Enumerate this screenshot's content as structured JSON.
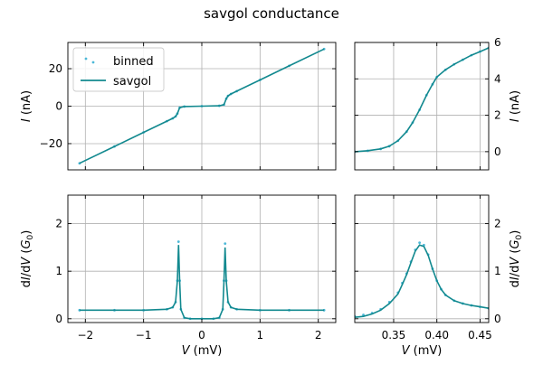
{
  "title": "savgol conductance",
  "colors": {
    "binned": "#4cb8d8",
    "savgol": "#12898f",
    "grid": "#b0b0b0"
  },
  "chart_data": [
    {
      "id": "top-left",
      "type": "scatter",
      "title": "",
      "xlabel": "",
      "ylabel": "I (nA)",
      "xlim": [
        -2.3,
        2.3
      ],
      "ylim": [
        -34,
        34
      ],
      "xticks": [
        -2,
        -1,
        0,
        1,
        2
      ],
      "xtick_labels": [
        "",
        "",
        "",
        "",
        ""
      ],
      "yticks": [
        -20,
        0,
        20
      ],
      "ytick_labels": [
        "−20",
        "0",
        "20"
      ],
      "ytick_side": "left",
      "grid": true,
      "legend": {
        "position": "top-left",
        "entries": [
          "binned",
          "savgol"
        ]
      },
      "series": [
        {
          "name": "binned",
          "style": "points",
          "x": [
            -2.1,
            -1.5,
            -1.0,
            -0.6,
            -0.5,
            -0.45,
            -0.42,
            -0.38,
            -0.3,
            0.0,
            0.3,
            0.38,
            0.42,
            0.45,
            0.5,
            0.6,
            1.0,
            1.5,
            2.1
          ],
          "y": [
            -30.5,
            -21.5,
            -14.0,
            -8.0,
            -6.5,
            -5.5,
            -4.0,
            -0.8,
            -0.2,
            0.0,
            0.2,
            0.8,
            4.0,
            5.5,
            6.5,
            8.0,
            14.0,
            21.5,
            30.5
          ]
        },
        {
          "name": "savgol",
          "style": "line",
          "x": [
            -2.1,
            -1.5,
            -1.0,
            -0.6,
            -0.5,
            -0.45,
            -0.42,
            -0.38,
            -0.3,
            0.0,
            0.3,
            0.38,
            0.42,
            0.45,
            0.5,
            0.6,
            1.0,
            1.5,
            2.1
          ],
          "y": [
            -30.5,
            -21.5,
            -14.0,
            -8.0,
            -6.5,
            -5.5,
            -4.0,
            -0.8,
            -0.2,
            0.0,
            0.2,
            0.8,
            4.0,
            5.5,
            6.5,
            8.0,
            14.0,
            21.5,
            30.5
          ]
        }
      ]
    },
    {
      "id": "top-right",
      "type": "line",
      "title": "",
      "xlabel": "",
      "ylabel": "I (nA)",
      "xlim": [
        0.305,
        0.46
      ],
      "ylim": [
        -1,
        6
      ],
      "xticks": [
        0.35,
        0.4,
        0.45
      ],
      "xtick_labels": [
        "",
        "",
        ""
      ],
      "yticks": [
        0,
        2,
        4,
        6
      ],
      "ytick_labels": [
        "0",
        "2",
        "4",
        "6"
      ],
      "ytick_side": "right",
      "grid": true,
      "series": [
        {
          "name": "binned",
          "style": "points",
          "x": [
            0.305,
            0.32,
            0.335,
            0.345,
            0.355,
            0.365,
            0.372,
            0.38,
            0.388,
            0.395,
            0.4,
            0.41,
            0.42,
            0.43,
            0.44,
            0.45,
            0.46
          ],
          "y": [
            0.0,
            0.05,
            0.15,
            0.3,
            0.6,
            1.1,
            1.6,
            2.3,
            3.1,
            3.7,
            4.1,
            4.5,
            4.8,
            5.05,
            5.3,
            5.5,
            5.7
          ]
        },
        {
          "name": "savgol",
          "style": "line",
          "x": [
            0.305,
            0.32,
            0.335,
            0.345,
            0.355,
            0.365,
            0.372,
            0.38,
            0.388,
            0.395,
            0.4,
            0.41,
            0.42,
            0.43,
            0.44,
            0.45,
            0.46
          ],
          "y": [
            0.0,
            0.05,
            0.15,
            0.3,
            0.6,
            1.1,
            1.6,
            2.3,
            3.1,
            3.7,
            4.1,
            4.5,
            4.8,
            5.05,
            5.3,
            5.5,
            5.7
          ]
        }
      ]
    },
    {
      "id": "bottom-left",
      "type": "scatter",
      "title": "",
      "xlabel": "V (mV)",
      "ylabel": "dI/dV (G0)",
      "xlim": [
        -2.3,
        2.3
      ],
      "ylim": [
        -0.08,
        2.6
      ],
      "xticks": [
        -2,
        -1,
        0,
        1,
        2
      ],
      "xtick_labels": [
        "−2",
        "−1",
        "0",
        "1",
        "2"
      ],
      "yticks": [
        0,
        1,
        2
      ],
      "ytick_labels": [
        "0",
        "1",
        "2"
      ],
      "ytick_side": "left",
      "grid": true,
      "series": [
        {
          "name": "binned",
          "style": "points",
          "x": [
            -2.1,
            -1.5,
            -1.0,
            -0.6,
            -0.5,
            -0.45,
            -0.42,
            -0.4,
            -0.38,
            -0.36,
            -0.3,
            -0.2,
            0.0,
            0.2,
            0.3,
            0.36,
            0.38,
            0.4,
            0.42,
            0.45,
            0.5,
            0.6,
            1.0,
            1.5,
            2.1
          ],
          "y": [
            0.18,
            0.18,
            0.18,
            0.2,
            0.24,
            0.35,
            0.8,
            1.62,
            0.8,
            0.2,
            0.02,
            0.0,
            0.0,
            0.0,
            0.02,
            0.2,
            0.8,
            1.58,
            0.8,
            0.35,
            0.24,
            0.2,
            0.18,
            0.18,
            0.18
          ]
        },
        {
          "name": "savgol",
          "style": "line",
          "x": [
            -2.1,
            -1.5,
            -1.0,
            -0.6,
            -0.5,
            -0.45,
            -0.42,
            -0.4,
            -0.38,
            -0.36,
            -0.3,
            -0.2,
            0.0,
            0.2,
            0.3,
            0.36,
            0.38,
            0.4,
            0.42,
            0.45,
            0.5,
            0.6,
            1.0,
            1.5,
            2.1
          ],
          "y": [
            0.18,
            0.18,
            0.18,
            0.2,
            0.24,
            0.35,
            0.8,
            1.55,
            0.8,
            0.2,
            0.02,
            0.0,
            0.0,
            0.0,
            0.02,
            0.2,
            0.8,
            1.5,
            0.8,
            0.35,
            0.24,
            0.2,
            0.18,
            0.18,
            0.18
          ]
        }
      ]
    },
    {
      "id": "bottom-right",
      "type": "line",
      "title": "",
      "xlabel": "V (mV)",
      "ylabel": "dI/dV (G0)",
      "xlim": [
        0.305,
        0.46
      ],
      "ylim": [
        -0.08,
        2.6
      ],
      "xticks": [
        0.35,
        0.4,
        0.45
      ],
      "xtick_labels": [
        "0.35",
        "0.40",
        "0.45"
      ],
      "yticks": [
        0,
        1,
        2
      ],
      "ytick_labels": [
        "0",
        "1",
        "2"
      ],
      "ytick_side": "right",
      "grid": true,
      "series": [
        {
          "name": "binned",
          "style": "points",
          "x": [
            0.305,
            0.315,
            0.325,
            0.335,
            0.345,
            0.355,
            0.36,
            0.365,
            0.37,
            0.375,
            0.38,
            0.385,
            0.39,
            0.395,
            0.4,
            0.405,
            0.41,
            0.42,
            0.43,
            0.44,
            0.45,
            0.46
          ],
          "y": [
            0.05,
            0.08,
            0.12,
            0.2,
            0.35,
            0.55,
            0.75,
            0.95,
            1.2,
            1.45,
            1.6,
            1.55,
            1.35,
            1.05,
            0.8,
            0.62,
            0.5,
            0.38,
            0.32,
            0.28,
            0.25,
            0.22
          ]
        },
        {
          "name": "savgol",
          "style": "line",
          "x": [
            0.305,
            0.315,
            0.325,
            0.335,
            0.345,
            0.355,
            0.36,
            0.365,
            0.37,
            0.375,
            0.38,
            0.385,
            0.39,
            0.395,
            0.4,
            0.405,
            0.41,
            0.42,
            0.43,
            0.44,
            0.45,
            0.46
          ],
          "y": [
            0.03,
            0.05,
            0.1,
            0.18,
            0.32,
            0.52,
            0.72,
            0.93,
            1.18,
            1.42,
            1.55,
            1.52,
            1.33,
            1.05,
            0.8,
            0.62,
            0.5,
            0.38,
            0.32,
            0.28,
            0.25,
            0.22
          ]
        }
      ]
    }
  ]
}
